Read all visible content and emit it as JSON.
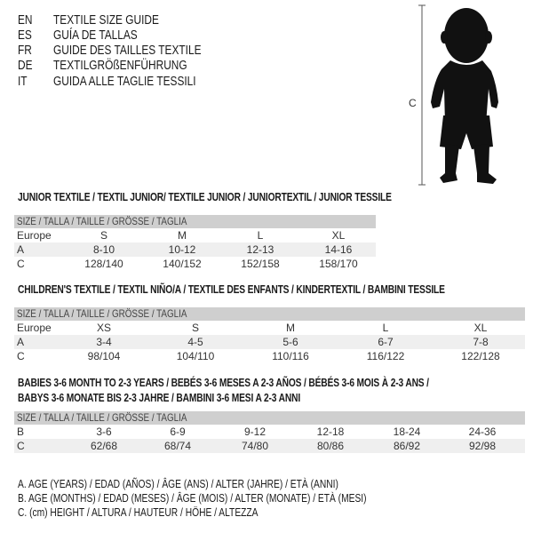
{
  "languages": [
    {
      "code": "EN",
      "text": "TEXTILE SIZE GUIDE"
    },
    {
      "code": "ES",
      "text": "GUÍA DE TALLAS"
    },
    {
      "code": "FR",
      "text": "GUIDE DES TAILLES TEXTILE"
    },
    {
      "code": "DE",
      "text": "TEXTILGRÖßENFÜHRUNG"
    },
    {
      "code": "IT",
      "text": "GUIDA ALLE TAGLIE TESSILI"
    }
  ],
  "figure": {
    "label": "C",
    "icon": "baby-silhouette-icon"
  },
  "junior": {
    "title": "JUNIOR TEXTILE / TEXTIL JUNIOR/ TEXTILE JUNIOR / JUNIORTEXTIL / JUNIOR TESSILE",
    "header": "SIZE / TALLA / TAILLE / GRÖSSE / TAGLIA",
    "rows": [
      {
        "label": "Europe",
        "cells": [
          "S",
          "M",
          "L",
          "XL"
        ]
      },
      {
        "label": "A",
        "cells": [
          "8-10",
          "10-12",
          "12-13",
          "14-16"
        ]
      },
      {
        "label": "C",
        "cells": [
          "128/140",
          "140/152",
          "152/158",
          "158/170"
        ]
      }
    ]
  },
  "children": {
    "title": "CHILDREN'S TEXTILE / TEXTIL NIÑO/A / TEXTILE DES ENFANTS / KINDERTEXTIL / BAMBINI TESSILE",
    "header": "SIZE / TALLA / TAILLE / GRÖSSE / TAGLIA",
    "rows": [
      {
        "label": "Europe",
        "cells": [
          "XS",
          "S",
          "M",
          "L",
          "XL"
        ]
      },
      {
        "label": "A",
        "cells": [
          "3-4",
          "4-5",
          "5-6",
          "6-7",
          "7-8"
        ]
      },
      {
        "label": "C",
        "cells": [
          "98/104",
          "104/110",
          "110/116",
          "116/122",
          "122/128"
        ]
      }
    ]
  },
  "babies": {
    "title_line1": "BABIES 3-6 MONTH TO 2-3 YEARS / BEBÉS 3-6 MESES A 2-3 AÑOS / BÉBÉS 3-6 MOIS À 2-3 ANS /",
    "title_line2": "BABYS 3-6 MONATE BIS 2-3 JAHRE / BAMBINI 3-6 MESI A 2-3 ANNI",
    "header": "SIZE / TALLA / TAILLE / GRÖSSE / TAGLIA",
    "rows": [
      {
        "label": "B",
        "cells": [
          "3-6",
          "6-9",
          "9-12",
          "12-18",
          "18-24",
          "24-36"
        ]
      },
      {
        "label": "C",
        "cells": [
          "62/68",
          "68/74",
          "74/80",
          "80/86",
          "86/92",
          "92/98"
        ]
      }
    ]
  },
  "legend": [
    "A. AGE (YEARS) / EDAD (AÑOS) / ÂGE (ANS) / ALTER (JAHRE) / ETÀ (ANNI)",
    "B. AGE (MONTHS) / EDAD (MESES) / ÂGE (MOIS) / ALTER (MONATE) / ETÀ (MESI)",
    "C. (cm) HEIGHT / ALTURA / HAUTEUR / HÖHE / ALTEZZA"
  ]
}
